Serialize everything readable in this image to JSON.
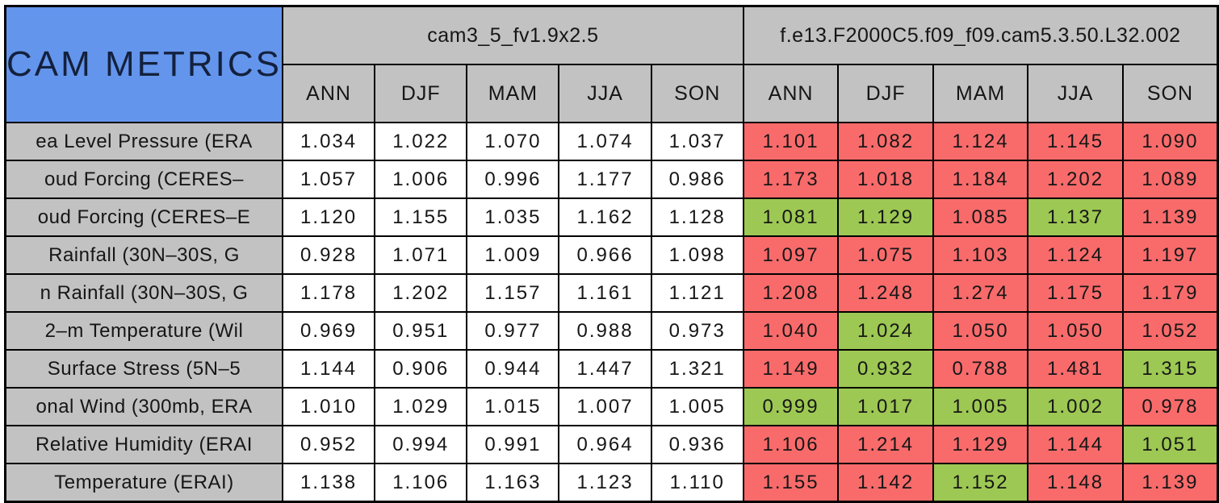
{
  "chart_data": {
    "type": "table",
    "title": "CAM METRICS",
    "column_groups": [
      {
        "name": "cam3_5_fv1.9x2.5"
      },
      {
        "name": "f.e13.F2000C5.f09_f09.cam5.3.50.L32.002"
      }
    ],
    "season_columns": [
      "ANN",
      "DJF",
      "MAM",
      "JJA",
      "SON"
    ],
    "colors": {
      "title_bg": "#6495ec",
      "header_bg": "#c2c2c2",
      "white": "#ffffff",
      "red": "#f96b6b",
      "green": "#9dc853",
      "border": "#000000"
    },
    "rows": [
      {
        "label": "ea Level Pressure (ERA",
        "cam3_5": [
          "1.034",
          "1.022",
          "1.070",
          "1.074",
          "1.037"
        ],
        "cam5_values": [
          "1.101",
          "1.082",
          "1.124",
          "1.145",
          "1.090"
        ],
        "cam5_colors": [
          "red",
          "red",
          "red",
          "red",
          "red"
        ]
      },
      {
        "label": "oud Forcing (CERES–",
        "cam3_5": [
          "1.057",
          "1.006",
          "0.996",
          "1.177",
          "0.986"
        ],
        "cam5_values": [
          "1.173",
          "1.018",
          "1.184",
          "1.202",
          "1.089"
        ],
        "cam5_colors": [
          "red",
          "red",
          "red",
          "red",
          "red"
        ]
      },
      {
        "label": "oud Forcing (CERES–E",
        "cam3_5": [
          "1.120",
          "1.155",
          "1.035",
          "1.162",
          "1.128"
        ],
        "cam5_values": [
          "1.081",
          "1.129",
          "1.085",
          "1.137",
          "1.139"
        ],
        "cam5_colors": [
          "green",
          "green",
          "red",
          "green",
          "red"
        ]
      },
      {
        "label": "Rainfall (30N–30S, G",
        "cam3_5": [
          "0.928",
          "1.071",
          "1.009",
          "0.966",
          "1.098"
        ],
        "cam5_values": [
          "1.097",
          "1.075",
          "1.103",
          "1.124",
          "1.197"
        ],
        "cam5_colors": [
          "red",
          "red",
          "red",
          "red",
          "red"
        ]
      },
      {
        "label": "n Rainfall (30N–30S, G",
        "cam3_5": [
          "1.178",
          "1.202",
          "1.157",
          "1.161",
          "1.121"
        ],
        "cam5_values": [
          "1.208",
          "1.248",
          "1.274",
          "1.175",
          "1.179"
        ],
        "cam5_colors": [
          "red",
          "red",
          "red",
          "red",
          "red"
        ]
      },
      {
        "label": "2–m Temperature (Wil",
        "cam3_5": [
          "0.969",
          "0.951",
          "0.977",
          "0.988",
          "0.973"
        ],
        "cam5_values": [
          "1.040",
          "1.024",
          "1.050",
          "1.050",
          "1.052"
        ],
        "cam5_colors": [
          "red",
          "green",
          "red",
          "red",
          "red"
        ]
      },
      {
        "label": "Surface Stress (5N–5",
        "cam3_5": [
          "1.144",
          "0.906",
          "0.944",
          "1.447",
          "1.321"
        ],
        "cam5_values": [
          "1.149",
          "0.932",
          "0.788",
          "1.481",
          "1.315"
        ],
        "cam5_colors": [
          "red",
          "green",
          "red",
          "red",
          "green"
        ]
      },
      {
        "label": "onal Wind (300mb, ERA",
        "cam3_5": [
          "1.010",
          "1.029",
          "1.015",
          "1.007",
          "1.005"
        ],
        "cam5_values": [
          "0.999",
          "1.017",
          "1.005",
          "1.002",
          "0.978"
        ],
        "cam5_colors": [
          "green",
          "green",
          "green",
          "green",
          "red"
        ]
      },
      {
        "label": "Relative Humidity (ERAI",
        "cam3_5": [
          "0.952",
          "0.994",
          "0.991",
          "0.964",
          "0.936"
        ],
        "cam5_values": [
          "1.106",
          "1.214",
          "1.129",
          "1.144",
          "1.051"
        ],
        "cam5_colors": [
          "red",
          "red",
          "red",
          "red",
          "green"
        ]
      },
      {
        "label": "Temperature (ERAI)",
        "cam3_5": [
          "1.138",
          "1.106",
          "1.163",
          "1.123",
          "1.110"
        ],
        "cam5_values": [
          "1.155",
          "1.142",
          "1.152",
          "1.148",
          "1.139"
        ],
        "cam5_colors": [
          "red",
          "red",
          "green",
          "red",
          "red"
        ]
      }
    ]
  }
}
